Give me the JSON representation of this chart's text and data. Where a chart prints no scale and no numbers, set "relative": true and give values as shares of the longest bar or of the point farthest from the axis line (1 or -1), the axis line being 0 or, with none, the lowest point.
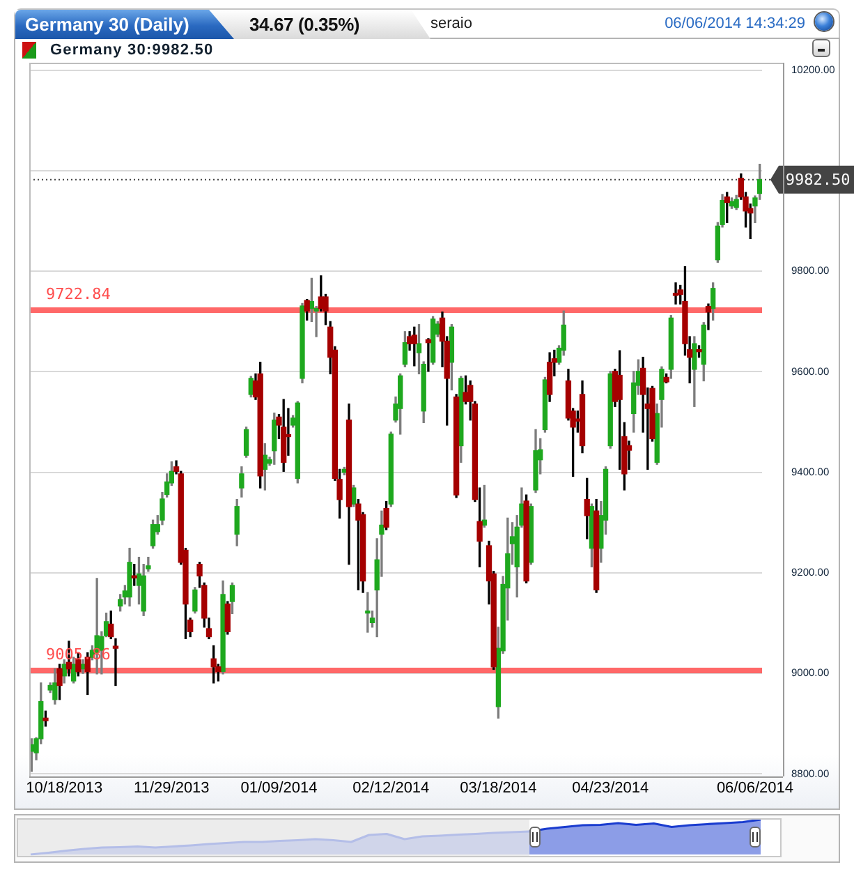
{
  "chart_data": [
    {
      "type": "candlestick",
      "title": "Germany 30 (Daily)",
      "subtitle": "34.67 (0.35%)",
      "annotations": [
        "seraio",
        "06/06/2014 14:34:29",
        "Germany 30:9982.50"
      ],
      "categories": [
        null,
        null,
        null,
        null,
        null,
        null,
        null,
        "10/18/2013",
        null,
        null,
        null,
        null,
        null,
        null,
        null,
        null,
        null,
        null,
        null,
        null,
        null,
        null,
        null,
        null,
        null,
        null,
        null,
        null,
        null,
        null,
        "11/29/2013",
        null,
        null,
        null,
        null,
        null,
        null,
        null,
        null,
        null,
        null,
        null,
        null,
        null,
        null,
        null,
        null,
        null,
        null,
        null,
        null,
        null,
        null,
        "01/09/2014",
        null,
        null,
        null,
        null,
        null,
        null,
        null,
        null,
        null,
        null,
        null,
        null,
        null,
        null,
        null,
        null,
        null,
        null,
        null,
        null,
        null,
        null,
        null,
        "02/12/2014",
        null,
        null,
        null,
        null,
        null,
        null,
        null,
        null,
        null,
        null,
        null,
        null,
        null,
        null,
        null,
        null,
        null,
        null,
        null,
        null,
        null,
        null,
        "03/18/2014",
        null,
        null,
        null,
        null,
        null,
        null,
        null,
        null,
        null,
        null,
        null,
        null,
        null,
        null,
        null,
        null,
        null,
        null,
        null,
        null,
        null,
        null,
        null,
        "04/23/2014",
        null,
        null,
        null,
        null,
        null,
        null,
        null,
        null,
        null,
        null,
        null,
        null,
        null,
        null,
        null,
        null,
        null,
        null,
        null,
        null,
        null,
        null,
        null,
        null,
        null,
        null,
        null,
        null,
        null,
        null,
        "06/06/2014",
        null
      ],
      "ohlc": [
        [
          8845,
          8870,
          8805,
          8858
        ],
        [
          8842,
          8872,
          8828,
          8870
        ],
        [
          8870,
          8981,
          8860,
          8944
        ],
        [
          8911,
          8925,
          8895,
          8906
        ],
        [
          8967,
          8981,
          8962,
          8976
        ],
        [
          8948,
          9009,
          8939,
          8981
        ],
        [
          9009,
          9018,
          8948,
          8976
        ],
        [
          8995,
          9027,
          8981,
          9018
        ],
        [
          9022,
          9064,
          8995,
          9009
        ],
        [
          8985,
          9032,
          8981,
          9018
        ],
        [
          9027,
          9041,
          8995,
          9004
        ],
        [
          9009,
          9027,
          9000,
          9018
        ],
        [
          9032,
          9041,
          8958,
          9004
        ],
        [
          9032,
          9055,
          9027,
          9046
        ],
        [
          9041,
          9189,
          8999,
          9075
        ],
        [
          9046,
          9083,
          8999,
          9073
        ],
        [
          9075,
          9120,
          9073,
          9103
        ],
        [
          9098,
          9124,
          9069,
          9073
        ],
        [
          9052,
          9069,
          8976,
          9050
        ],
        [
          9134,
          9157,
          9124,
          9147
        ],
        [
          9152,
          9175,
          9138,
          9164
        ],
        [
          9152,
          9249,
          9134,
          9221
        ],
        [
          9192,
          9217,
          9175,
          9190
        ],
        [
          9175,
          9231,
          9138,
          9198
        ],
        [
          9124,
          9217,
          9115,
          9194
        ],
        [
          9208,
          9231,
          9203,
          9214
        ],
        [
          9254,
          9305,
          9249,
          9296
        ],
        [
          9282,
          9314,
          9277,
          9296
        ],
        [
          9305,
          9360,
          9296,
          9347
        ],
        [
          9356,
          9397,
          9351,
          9381
        ],
        [
          9379,
          9421,
          9374,
          9402
        ],
        [
          9411,
          9423,
          9397,
          9402
        ],
        [
          9397,
          9402,
          9217,
          9221
        ],
        [
          9245,
          9249,
          9069,
          9138
        ],
        [
          9106,
          9110,
          9073,
          9083
        ],
        [
          9124,
          9171,
          9120,
          9166
        ],
        [
          9217,
          9221,
          9171,
          9194
        ],
        [
          9175,
          9180,
          9092,
          9110
        ],
        [
          9089,
          9110,
          9069,
          9073
        ],
        [
          9029,
          9055,
          8981,
          9013
        ],
        [
          9013,
          9018,
          8985,
          9004
        ],
        [
          9004,
          9184,
          8999,
          9157
        ],
        [
          9138,
          9143,
          9078,
          9083
        ],
        [
          9143,
          9180,
          9119,
          9175
        ],
        [
          9277,
          9346,
          9254,
          9332
        ],
        [
          9369,
          9411,
          9351,
          9397
        ],
        [
          9434,
          9490,
          9430,
          9485
        ],
        [
          9555,
          9591,
          9550,
          9587
        ],
        [
          9582,
          9596,
          9545,
          9550
        ],
        [
          9596,
          9619,
          9369,
          9393
        ],
        [
          9406,
          9457,
          9365,
          9434
        ],
        [
          9418,
          9430,
          9414,
          9425
        ],
        [
          9443,
          9518,
          9416,
          9504
        ],
        [
          9510,
          9515,
          9467,
          9494
        ],
        [
          9490,
          9545,
          9402,
          9420
        ],
        [
          9473,
          9527,
          9434,
          9471
        ],
        [
          9494,
          9513,
          9490,
          9508
        ],
        [
          9388,
          9541,
          9379,
          9538
        ],
        [
          9587,
          9736,
          9578,
          9731
        ],
        [
          9742,
          9744,
          9703,
          9721
        ],
        [
          9726,
          9786,
          9700,
          9740
        ],
        [
          9721,
          9730,
          9670,
          9726
        ],
        [
          9749,
          9791,
          9721,
          9726
        ],
        [
          9749,
          9754,
          9694,
          9721
        ],
        [
          9689,
          9700,
          9596,
          9629
        ],
        [
          9643,
          9650,
          9384,
          9388
        ],
        [
          9386,
          9406,
          9309,
          9346
        ],
        [
          9400,
          9410,
          9395,
          9406
        ],
        [
          9504,
          9536,
          9217,
          9332
        ],
        [
          9337,
          9374,
          9332,
          9369
        ],
        [
          9337,
          9346,
          9166,
          9305
        ],
        [
          9316,
          9320,
          9161,
          9184
        ],
        [
          9120,
          9161,
          9082,
          9124
        ],
        [
          9101,
          9124,
          9092,
          9110
        ],
        [
          9166,
          9268,
          9073,
          9226
        ],
        [
          9277,
          9323,
          9193,
          9295
        ],
        [
          9328,
          9342,
          9286,
          9291
        ],
        [
          9337,
          9480,
          9332,
          9476
        ],
        [
          9504,
          9550,
          9500,
          9536
        ],
        [
          9527,
          9596,
          9476,
          9592
        ],
        [
          9615,
          9680,
          9610,
          9658
        ],
        [
          9670,
          9680,
          9643,
          9656
        ],
        [
          9673,
          9689,
          9612,
          9656
        ],
        [
          9638,
          9694,
          9596,
          9656
        ],
        [
          9522,
          9620,
          9499,
          9615
        ],
        [
          9664,
          9666,
          9601,
          9658
        ],
        [
          9619,
          9710,
          9615,
          9705
        ],
        [
          9675,
          9700,
          9670,
          9695
        ],
        [
          9707,
          9719,
          9610,
          9661
        ],
        [
          9661,
          9670,
          9494,
          9587
        ],
        [
          9619,
          9694,
          9564,
          9689
        ],
        [
          9550,
          9555,
          9350,
          9355
        ],
        [
          9453,
          9591,
          9420,
          9587
        ],
        [
          9559,
          9592,
          9536,
          9541
        ],
        [
          9573,
          9582,
          9504,
          9541
        ],
        [
          9536,
          9541,
          9342,
          9346
        ],
        [
          9302,
          9369,
          9212,
          9263
        ],
        [
          9295,
          9374,
          9291,
          9305
        ],
        [
          9254,
          9263,
          9138,
          9184
        ],
        [
          9198,
          9203,
          9008,
          9013
        ],
        [
          8934,
          9092,
          8911,
          9050
        ],
        [
          9045,
          9193,
          9040,
          9177
        ],
        [
          9170,
          9309,
          9106,
          9238
        ],
        [
          9258,
          9300,
          9217,
          9272
        ],
        [
          9212,
          9314,
          9152,
          9291
        ],
        [
          9295,
          9369,
          9291,
          9337
        ],
        [
          9343,
          9355,
          9180,
          9184
        ],
        [
          9221,
          9337,
          9217,
          9332
        ],
        [
          9365,
          9485,
          9360,
          9443
        ],
        [
          9425,
          9467,
          9397,
          9445
        ],
        [
          9485,
          9589,
          9480,
          9584
        ],
        [
          9619,
          9638,
          9541,
          9555
        ],
        [
          9626,
          9643,
          9592,
          9619
        ],
        [
          9619,
          9652,
          9615,
          9647
        ],
        [
          9643,
          9721,
          9633,
          9693
        ],
        [
          9582,
          9605,
          9504,
          9508
        ],
        [
          9522,
          9527,
          9392,
          9490
        ],
        [
          9504,
          9522,
          9480,
          9502
        ],
        [
          9555,
          9582,
          9439,
          9453
        ],
        [
          9346,
          9388,
          9268,
          9314
        ],
        [
          9249,
          9337,
          9212,
          9332
        ],
        [
          9323,
          9346,
          9161,
          9166
        ],
        [
          9249,
          9342,
          9221,
          9314
        ],
        [
          9305,
          9411,
          9277,
          9406
        ],
        [
          9453,
          9601,
          9448,
          9596
        ],
        [
          9601,
          9605,
          9531,
          9541
        ],
        [
          9593,
          9642,
          9406,
          9545
        ],
        [
          9471,
          9499,
          9365,
          9397
        ],
        [
          9453,
          9462,
          9406,
          9444
        ],
        [
          9517,
          9601,
          9480,
          9578
        ],
        [
          9573,
          9624,
          9555,
          9601
        ],
        [
          9607,
          9629,
          9480,
          9555
        ],
        [
          9536,
          9568,
          9406,
          9527
        ],
        [
          9567,
          9571,
          9462,
          9467
        ],
        [
          9420,
          9536,
          9416,
          9517
        ],
        [
          9545,
          9610,
          9490,
          9605
        ],
        [
          9589,
          9596,
          9578,
          9580
        ],
        [
          9605,
          9712,
          9587,
          9707
        ],
        [
          9754,
          9777,
          9735,
          9752
        ],
        [
          9763,
          9772,
          9735,
          9754
        ],
        [
          9740,
          9809,
          9633,
          9656
        ],
        [
          9644,
          9670,
          9578,
          9629
        ],
        [
          9605,
          9670,
          9531,
          9656
        ],
        [
          9641,
          9652,
          9629,
          9640
        ],
        [
          9615,
          9698,
          9582,
          9693
        ],
        [
          9730,
          9735,
          9684,
          9719
        ],
        [
          9726,
          9777,
          9703,
          9766
        ],
        [
          9823,
          9897,
          9818,
          9890
        ],
        [
          9893,
          9953,
          9888,
          9941
        ],
        [
          9948,
          9957,
          9897,
          9937
        ],
        [
          9930,
          9946,
          9925,
          9939
        ],
        [
          9927,
          9951,
          9923,
          9943
        ],
        [
          9985,
          9994,
          9943,
          9948
        ],
        [
          9948,
          9957,
          9888,
          9920
        ],
        [
          9925,
          9934,
          9865,
          9916
        ],
        [
          9930,
          9950,
          9897,
          9946
        ],
        [
          9955,
          10013,
          9943,
          9982.5
        ]
      ],
      "colors": [
        "#1ea81e",
        "#1ea81e",
        "#1ea81e",
        "#a50000",
        "#1ea81e",
        "#1ea81e",
        "#a50000",
        "#1ea81e",
        "#a50000",
        "#1ea81e",
        "#a50000",
        "#1ea81e",
        "#a50000",
        "#1ea81e",
        "#1ea81e",
        "#1ea81e",
        "#1ea81e",
        "#a50000",
        "#a50000",
        "#1ea81e",
        "#1ea81e",
        "#1ea81e",
        "#a50000",
        "#1ea81e",
        "#1ea81e",
        "#1ea81e",
        "#1ea81e",
        "#1ea81e",
        "#1ea81e",
        "#1ea81e",
        "#1ea81e",
        "#a50000",
        "#a50000",
        "#a50000",
        "#a50000",
        "#1ea81e",
        "#a50000",
        "#a50000",
        "#a50000",
        "#a50000",
        "#a50000",
        "#1ea81e",
        "#a50000",
        "#1ea81e",
        "#1ea81e",
        "#1ea81e",
        "#1ea81e",
        "#1ea81e",
        "#a50000",
        "#a50000",
        "#1ea81e",
        "#1ea81e",
        "#1ea81e",
        "#a50000",
        "#a50000",
        "#a50000",
        "#1ea81e",
        "#1ea81e",
        "#1ea81e",
        "#a50000",
        "#1ea81e",
        "#1ea81e",
        "#a50000",
        "#a50000",
        "#a50000",
        "#a50000",
        "#a50000",
        "#1ea81e",
        "#a50000",
        "#1ea81e",
        "#a50000",
        "#a50000",
        "#1ea81e",
        "#1ea81e",
        "#1ea81e",
        "#1ea81e",
        "#a50000",
        "#1ea81e",
        "#1ea81e",
        "#1ea81e",
        "#1ea81e",
        "#a50000",
        "#a50000",
        "#1ea81e",
        "#1ea81e",
        "#a50000",
        "#1ea81e",
        "#1ea81e",
        "#a50000",
        "#a50000",
        "#1ea81e",
        "#a50000",
        "#1ea81e",
        "#a50000",
        "#a50000",
        "#a50000",
        "#a50000",
        "#1ea81e",
        "#a50000",
        "#a50000",
        "#1ea81e",
        "#1ea81e",
        "#1ea81e",
        "#1ea81e",
        "#1ea81e",
        "#1ea81e",
        "#a50000",
        "#1ea81e",
        "#1ea81e",
        "#1ea81e",
        "#1ea81e",
        "#a50000",
        "#a50000",
        "#1ea81e",
        "#1ea81e",
        "#a50000",
        "#a50000",
        "#a50000",
        "#a50000",
        "#a50000",
        "#1ea81e",
        "#a50000",
        "#1ea81e",
        "#1ea81e",
        "#1ea81e",
        "#a50000",
        "#a50000",
        "#a50000",
        "#a50000",
        "#1ea81e",
        "#1ea81e",
        "#a50000",
        "#a50000",
        "#a50000",
        "#1ea81e",
        "#1ea81e",
        "#a50000",
        "#1ea81e",
        "#a50000",
        "#a50000",
        "#a50000",
        "#a50000",
        "#1ea81e",
        "#a50000",
        "#1ea81e",
        "#a50000",
        "#1ea81e",
        "#1ea81e",
        "#1ea81e",
        "#a50000",
        "#1ea81e",
        "#1ea81e",
        "#a50000",
        "#a50000",
        "#a50000",
        "#1ea81e",
        "#1ea81e"
      ],
      "ylim": [
        8795,
        10215
      ],
      "yticks": [
        {
          "value": 8800,
          "label": "8800.00"
        },
        {
          "value": 9000,
          "label": "9000.00"
        },
        {
          "value": 9200,
          "label": "9200.00"
        },
        {
          "value": 9400,
          "label": "9400.00"
        },
        {
          "value": 9600,
          "label": "9600.00"
        },
        {
          "value": 9800,
          "label": "9800.00"
        },
        {
          "value": 10000,
          "label": null
        },
        {
          "value": 10200,
          "label": "10200.00"
        }
      ],
      "grid": "y",
      "ref_lines": [
        {
          "axis": "y",
          "value": 9722.84,
          "label": "9722.84",
          "color": "#ff4d4d"
        },
        {
          "axis": "y",
          "value": 9005.86,
          "label": "9005.86",
          "color": "#ff4d4d"
        },
        {
          "axis": "y",
          "value": 9982.5,
          "label": "9982.50",
          "color": "#444444",
          "line_style": "dotted"
        }
      ]
    },
    {
      "type": "area",
      "relative": true,
      "categories": [
        null,
        null,
        null,
        null,
        null,
        null,
        null,
        null,
        null,
        null,
        null,
        null,
        null,
        null,
        null,
        null,
        null,
        null,
        null,
        null,
        null,
        null,
        null,
        null,
        null,
        null,
        null,
        null,
        null,
        null,
        null,
        null,
        null,
        null,
        null,
        null,
        null,
        null,
        null,
        null,
        null,
        null
      ],
      "series": [
        {
          "color": "#b4bee8",
          "values": [
            0,
            0.05,
            0.11,
            0.16,
            0.2,
            0.21,
            0.23,
            0.2,
            0.23,
            0.26,
            0.3,
            0.33,
            0.36,
            0.36,
            0.39,
            0.41,
            0.44,
            0.41,
            0.36,
            0.56,
            0.59,
            0.44,
            0.52,
            0.54,
            0.57,
            0.59,
            0.62,
            0.64,
            0.66,
            null,
            null,
            null,
            null,
            null,
            null,
            null,
            null,
            null,
            null,
            null,
            null,
            null
          ]
        },
        {
          "color": "#1a3ccf",
          "values": [
            null,
            null,
            null,
            null,
            null,
            null,
            null,
            null,
            null,
            null,
            null,
            null,
            null,
            null,
            null,
            null,
            null,
            null,
            null,
            null,
            null,
            null,
            null,
            null,
            null,
            null,
            null,
            null,
            0.66,
            0.74,
            0.79,
            0.84,
            0.85,
            0.9,
            0.85,
            0.89,
            0.79,
            0.84,
            0.87,
            0.9,
            0.93,
            1
          ]
        }
      ]
    }
  ]
}
